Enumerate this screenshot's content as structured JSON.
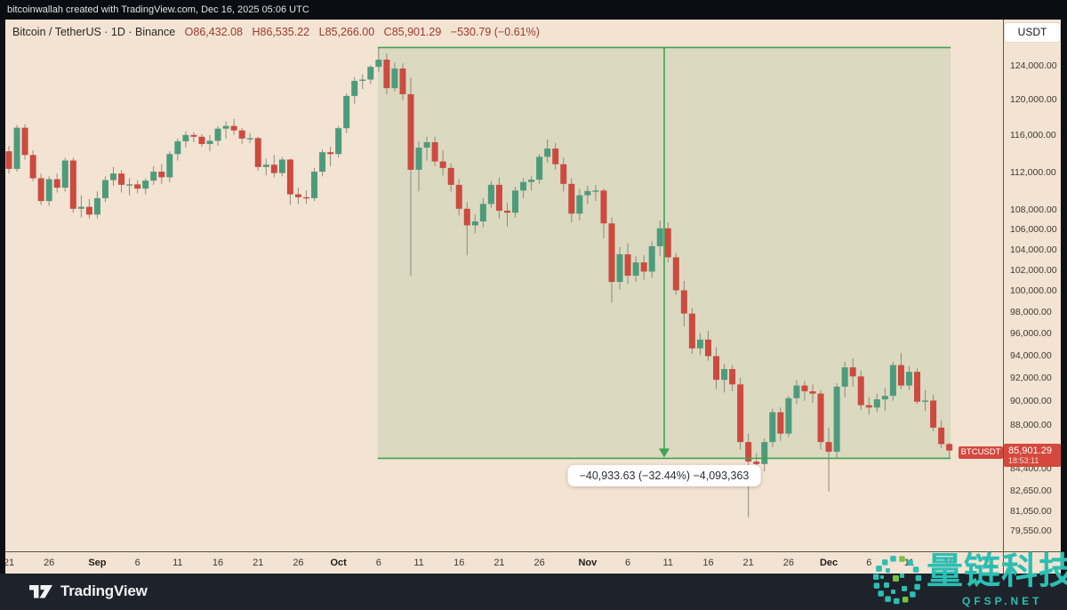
{
  "top_bar": {
    "text": "bitcoinwallah created with TradingView.com, Dec 16, 2025 05:06 UTC"
  },
  "header": {
    "symbol_line": "Bitcoin / TetherUS · 1D · Binance",
    "open": "O86,432.08",
    "high": "H86,535.22",
    "low": "L85,266.00",
    "close": "C85,901.29",
    "change": "−530.79 (−0.61%)"
  },
  "price_axis": {
    "currency_button": "USDT",
    "labels": [
      {
        "value": 124000,
        "label": "124,000.00"
      },
      {
        "value": 120000,
        "label": "120,000.00"
      },
      {
        "value": 116000,
        "label": "116,000.00"
      },
      {
        "value": 112000,
        "label": "112,000.00"
      },
      {
        "value": 108000,
        "label": "108,000.00"
      },
      {
        "value": 106000,
        "label": "106,000.00"
      },
      {
        "value": 104000,
        "label": "104,000.00"
      },
      {
        "value": 102000,
        "label": "102,000.00"
      },
      {
        "value": 100000,
        "label": "100,000.00"
      },
      {
        "value": 98000,
        "label": "98,000.00"
      },
      {
        "value": 96000,
        "label": "96,000.00"
      },
      {
        "value": 94000,
        "label": "94,000.00"
      },
      {
        "value": 92000,
        "label": "92,000.00"
      },
      {
        "value": 90000,
        "label": "90,000.00"
      },
      {
        "value": 88000,
        "label": "88,000.00"
      },
      {
        "value": 84400,
        "label": "84,400.00"
      },
      {
        "value": 82650,
        "label": "82,650.00"
      },
      {
        "value": 81050,
        "label": "81,050.00"
      },
      {
        "value": 79550,
        "label": "79,550.00"
      }
    ],
    "price_tag": {
      "symbol_tag": "BTCUSDT",
      "price": "85,901.29",
      "countdown": "18:53:11"
    }
  },
  "time_axis": {
    "labels": [
      {
        "index": 0,
        "text": "21",
        "bold": false
      },
      {
        "index": 5,
        "text": "26",
        "bold": false
      },
      {
        "index": 11,
        "text": "Sep",
        "bold": true
      },
      {
        "index": 16,
        "text": "6",
        "bold": false
      },
      {
        "index": 21,
        "text": "11",
        "bold": false
      },
      {
        "index": 26,
        "text": "16",
        "bold": false
      },
      {
        "index": 31,
        "text": "21",
        "bold": false
      },
      {
        "index": 36,
        "text": "26",
        "bold": false
      },
      {
        "index": 41,
        "text": "Oct",
        "bold": true
      },
      {
        "index": 46,
        "text": "6",
        "bold": false
      },
      {
        "index": 51,
        "text": "11",
        "bold": false
      },
      {
        "index": 56,
        "text": "16",
        "bold": false
      },
      {
        "index": 61,
        "text": "21",
        "bold": false
      },
      {
        "index": 66,
        "text": "26",
        "bold": false
      },
      {
        "index": 72,
        "text": "Nov",
        "bold": true
      },
      {
        "index": 77,
        "text": "6",
        "bold": false
      },
      {
        "index": 82,
        "text": "11",
        "bold": false
      },
      {
        "index": 87,
        "text": "16",
        "bold": false
      },
      {
        "index": 92,
        "text": "21",
        "bold": false
      },
      {
        "index": 97,
        "text": "26",
        "bold": false
      },
      {
        "index": 102,
        "text": "Dec",
        "bold": true
      },
      {
        "index": 107,
        "text": "6",
        "bold": false
      },
      {
        "index": 112,
        "text": "11",
        "bold": false
      },
      {
        "index": 117,
        "text": "16",
        "bold": false
      },
      {
        "index": 122,
        "text": "21",
        "bold": false
      }
    ]
  },
  "measurement": {
    "label": "−40,933.63 (−32.44%) −4,093,363",
    "from_price": 126199.63,
    "to_price": 85266.0,
    "start_index": 46,
    "end_index": 117
  },
  "watermark": {
    "title": "量链科技",
    "subtitle": "QFSP.NET"
  },
  "footer": {
    "brand": "TradingView"
  },
  "colors": {
    "up": "#4c9c7c",
    "down": "#cc4a40",
    "wick": "#8f887e",
    "measure_green": "#3fa452",
    "measure_fill": "rgba(86,163,92,0.15)",
    "tag_red": "#d4483d",
    "chart_bg": "#f3e3d2",
    "watermark_teal": "#2bbfb3",
    "watermark_green": "#7ac143"
  },
  "chart_data": {
    "type": "candlestick",
    "symbol": "BTCUSDT",
    "exchange": "Binance",
    "interval": "1D",
    "y_axis": "price (USDT)",
    "scale": "log",
    "ylim": [
      77500,
      129500
    ],
    "candles": [
      [
        "Aug 21",
        114300,
        114900,
        111900,
        112400
      ],
      [
        "Aug 22",
        112400,
        117200,
        112100,
        116900
      ],
      [
        "Aug 23",
        116900,
        117300,
        113400,
        113900
      ],
      [
        "Aug 24",
        113900,
        114400,
        111100,
        111400
      ],
      [
        "Aug 25",
        111400,
        111900,
        108600,
        109000
      ],
      [
        "Aug 26",
        109000,
        111600,
        108500,
        111300
      ],
      [
        "Aug 27",
        111300,
        111900,
        109900,
        110400
      ],
      [
        "Aug 28",
        110400,
        113600,
        110000,
        113300
      ],
      [
        "Aug 29",
        113300,
        113600,
        107800,
        108200
      ],
      [
        "Aug 30",
        108200,
        109600,
        107300,
        108400
      ],
      [
        "Aug 31",
        108400,
        109200,
        107200,
        107600
      ],
      [
        "Sep 1",
        107600,
        110000,
        107200,
        109300
      ],
      [
        "Sep 2",
        109300,
        111600,
        108900,
        111200
      ],
      [
        "Sep 3",
        111200,
        112600,
        110600,
        111900
      ],
      [
        "Sep 4",
        111900,
        112300,
        109900,
        110700
      ],
      [
        "Sep 5",
        110700,
        111400,
        109600,
        110750
      ],
      [
        "Sep 6",
        110750,
        111200,
        109800,
        110300
      ],
      [
        "Sep 7",
        110300,
        111400,
        109700,
        111150
      ],
      [
        "Sep 8",
        111150,
        112700,
        110700,
        112100
      ],
      [
        "Sep 9",
        112100,
        112900,
        110800,
        111500
      ],
      [
        "Sep 10",
        111500,
        114300,
        111000,
        114000
      ],
      [
        "Sep 11",
        114000,
        115700,
        113300,
        115400
      ],
      [
        "Sep 12",
        115400,
        116500,
        114700,
        116100
      ],
      [
        "Sep 13",
        116100,
        116400,
        115300,
        115900
      ],
      [
        "Sep 14",
        115900,
        116200,
        114800,
        115100
      ],
      [
        "Sep 15",
        115100,
        116100,
        114300,
        115450
      ],
      [
        "Sep 16",
        115450,
        117100,
        114900,
        116800
      ],
      [
        "Sep 17",
        116800,
        117600,
        115700,
        117100
      ],
      [
        "Sep 18",
        117100,
        117900,
        116100,
        116600
      ],
      [
        "Sep 19",
        116600,
        116900,
        115100,
        115700
      ],
      [
        "Sep 20",
        115700,
        116300,
        115200,
        115750
      ],
      [
        "Sep 21",
        115750,
        115900,
        112200,
        112600
      ],
      [
        "Sep 22",
        112600,
        113500,
        111700,
        112850
      ],
      [
        "Sep 23",
        112850,
        113900,
        111500,
        111950
      ],
      [
        "Sep 24",
        111950,
        113700,
        111600,
        113400
      ],
      [
        "Sep 25",
        113400,
        113500,
        108600,
        109700
      ],
      [
        "Sep 26",
        109700,
        110400,
        108700,
        109400
      ],
      [
        "Sep 27",
        109400,
        110100,
        108700,
        109300
      ],
      [
        "Sep 28",
        109300,
        112500,
        109000,
        112100
      ],
      [
        "Sep 29",
        112100,
        114500,
        111600,
        114200
      ],
      [
        "Sep 30",
        114200,
        114800,
        112700,
        114000
      ],
      [
        "Oct 1",
        114000,
        117100,
        113600,
        116850
      ],
      [
        "Oct 2",
        116850,
        120800,
        116300,
        120500
      ],
      [
        "Oct 3",
        120500,
        122700,
        119600,
        122250
      ],
      [
        "Oct 4",
        122250,
        123000,
        121300,
        122400
      ],
      [
        "Oct 5",
        122400,
        124100,
        121900,
        123900
      ],
      [
        "Oct 6",
        123900,
        126199.63,
        123300,
        124750
      ],
      [
        "Oct 7",
        124750,
        125500,
        120700,
        121400
      ],
      [
        "Oct 8",
        121400,
        124400,
        121000,
        123700
      ],
      [
        "Oct 9",
        123700,
        124300,
        120000,
        120700
      ],
      [
        "Oct 10",
        120700,
        122600,
        101500,
        112300
      ],
      [
        "Oct 11",
        112300,
        115400,
        110000,
        114700
      ],
      [
        "Oct 12",
        114700,
        115900,
        113300,
        115300
      ],
      [
        "Oct 13",
        115300,
        115900,
        112700,
        113200
      ],
      [
        "Oct 14",
        113200,
        114400,
        111700,
        112500
      ],
      [
        "Oct 15",
        112500,
        113000,
        110000,
        110700
      ],
      [
        "Oct 16",
        110700,
        111300,
        107500,
        108200
      ],
      [
        "Oct 17",
        108200,
        108900,
        103500,
        106500
      ],
      [
        "Oct 18",
        106500,
        107600,
        105700,
        106900
      ],
      [
        "Oct 19",
        106900,
        109300,
        106300,
        108700
      ],
      [
        "Oct 20",
        108700,
        111100,
        108300,
        110700
      ],
      [
        "Oct 21",
        110700,
        111500,
        107200,
        108000
      ],
      [
        "Oct 22",
        108000,
        108800,
        106400,
        107800
      ],
      [
        "Oct 23",
        107800,
        110500,
        107300,
        110100
      ],
      [
        "Oct 24",
        110100,
        111400,
        109300,
        111000
      ],
      [
        "Oct 25",
        111000,
        111600,
        110100,
        111250
      ],
      [
        "Oct 26",
        111250,
        114000,
        110800,
        113700
      ],
      [
        "Oct 27",
        113700,
        115600,
        113100,
        114600
      ],
      [
        "Oct 28",
        114600,
        115200,
        112300,
        112900
      ],
      [
        "Oct 29",
        112900,
        113600,
        110000,
        110800
      ],
      [
        "Oct 30",
        110800,
        111400,
        106800,
        107700
      ],
      [
        "Oct 31",
        107700,
        110300,
        107000,
        109600
      ],
      [
        "Nov 1",
        109600,
        110600,
        108700,
        110050
      ],
      [
        "Nov 2",
        110050,
        110700,
        109000,
        110100
      ],
      [
        "Nov 3",
        110100,
        110300,
        105200,
        106700
      ],
      [
        "Nov 4",
        106700,
        107300,
        98900,
        100900
      ],
      [
        "Nov 5",
        100900,
        104300,
        100200,
        103600
      ],
      [
        "Nov 6",
        103600,
        104700,
        100700,
        101500
      ],
      [
        "Nov 7",
        101500,
        103400,
        100900,
        102800
      ],
      [
        "Nov 8",
        102800,
        103500,
        101100,
        101900
      ],
      [
        "Nov 9",
        101900,
        104900,
        101300,
        104400
      ],
      [
        "Nov 10",
        104400,
        107000,
        103400,
        106200
      ],
      [
        "Nov 11",
        106200,
        106800,
        102800,
        103300
      ],
      [
        "Nov 12",
        103300,
        103700,
        99700,
        100100
      ],
      [
        "Nov 13",
        100100,
        101000,
        96700,
        97900
      ],
      [
        "Nov 14",
        97900,
        98400,
        94200,
        94700
      ],
      [
        "Nov 15",
        94700,
        96100,
        94100,
        95500
      ],
      [
        "Nov 16",
        95500,
        96300,
        93600,
        94000
      ],
      [
        "Nov 17",
        94000,
        94800,
        91100,
        91900
      ],
      [
        "Nov 18",
        91900,
        93300,
        90800,
        92850
      ],
      [
        "Nov 19",
        92850,
        93200,
        90900,
        91500
      ],
      [
        "Nov 20",
        91500,
        92100,
        86000,
        86600
      ],
      [
        "Nov 21",
        86600,
        87300,
        80600,
        85000
      ],
      [
        "Nov 22",
        85000,
        85700,
        83900,
        84800
      ],
      [
        "Nov 23",
        84800,
        86900,
        84200,
        86600
      ],
      [
        "Nov 24",
        86600,
        89400,
        86200,
        89100
      ],
      [
        "Nov 25",
        89100,
        89500,
        86700,
        87300
      ],
      [
        "Nov 26",
        87300,
        90500,
        87000,
        90300
      ],
      [
        "Nov 27",
        90300,
        91900,
        89800,
        91400
      ],
      [
        "Nov 28",
        91400,
        91800,
        90100,
        90900
      ],
      [
        "Nov 29",
        90900,
        91500,
        89900,
        90700
      ],
      [
        "Nov 30",
        90700,
        91000,
        86000,
        86600
      ],
      [
        "Dec 1",
        86600,
        87800,
        82600,
        85800
      ],
      [
        "Dec 2",
        85800,
        91600,
        85300,
        91300
      ],
      [
        "Dec 3",
        91300,
        93500,
        90400,
        93000
      ],
      [
        "Dec 4",
        93000,
        93800,
        91300,
        92200
      ],
      [
        "Dec 5",
        92200,
        92700,
        89300,
        89700
      ],
      [
        "Dec 6",
        89700,
        90400,
        88900,
        89500
      ],
      [
        "Dec 7",
        89500,
        90700,
        89100,
        90200
      ],
      [
        "Dec 8",
        90200,
        91200,
        89200,
        90500
      ],
      [
        "Dec 9",
        90500,
        93500,
        90100,
        93200
      ],
      [
        "Dec 10",
        93200,
        94300,
        91100,
        91400
      ],
      [
        "Dec 11",
        91400,
        93100,
        91000,
        92600
      ],
      [
        "Dec 12",
        92600,
        92900,
        89800,
        90000
      ],
      [
        "Dec 13",
        90000,
        91000,
        89200,
        90100
      ],
      [
        "Dec 14",
        90100,
        90600,
        87500,
        87800
      ],
      [
        "Dec 15",
        87800,
        88400,
        86100,
        86432
      ],
      [
        "Dec 16",
        86432.08,
        86535.22,
        85266.0,
        85901.29
      ]
    ]
  }
}
